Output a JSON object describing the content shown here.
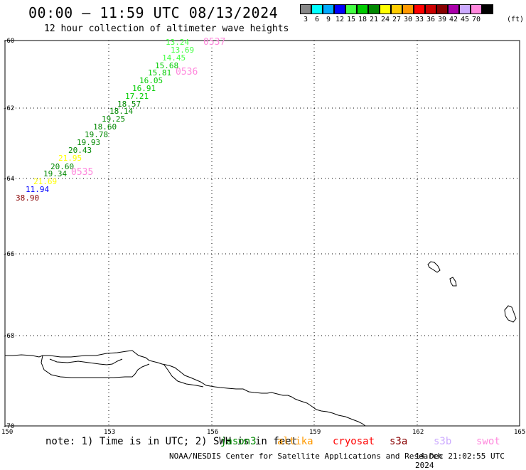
{
  "header": {
    "title": "00:00 – 11:59 UTC 08/13/2024",
    "subtitle": "12 hour collection of altimeter wave heights"
  },
  "legend": {
    "colors": [
      "#888888",
      "#00ffff",
      "#00aaff",
      "#0000ff",
      "#44ff44",
      "#00cc00",
      "#008800",
      "#ffff00",
      "#ffcc00",
      "#ff9900",
      "#ff0000",
      "#cc0000",
      "#880000",
      "#aa00aa",
      "#ccaaff",
      "#ff88dd",
      "#000000"
    ],
    "labels": [
      "3",
      "6",
      "9",
      "12",
      "15",
      "18",
      "21",
      "24",
      "27",
      "30",
      "33",
      "36",
      "39",
      "42",
      "45",
      "70"
    ],
    "unit": "(ft)"
  },
  "axes": {
    "lat_labels": [
      "-60",
      "-62",
      "-64",
      "-66",
      "-68",
      "-70"
    ],
    "lon_labels": [
      "150",
      "153",
      "156",
      "159",
      "162",
      "165"
    ]
  },
  "observations": [
    {
      "value": "13.24",
      "color": "#44ff44"
    },
    {
      "value": "13.69",
      "color": "#44ff44"
    },
    {
      "value": "14.45",
      "color": "#44ff44"
    },
    {
      "value": "15.68",
      "color": "#00cc00"
    },
    {
      "value": "15.81",
      "color": "#00cc00"
    },
    {
      "value": "16.05",
      "color": "#00cc00"
    },
    {
      "value": "16.91",
      "color": "#00cc00"
    },
    {
      "value": "17.21",
      "color": "#00cc00"
    },
    {
      "value": "18.57",
      "color": "#008800"
    },
    {
      "value": "18.14",
      "color": "#008800"
    },
    {
      "value": "19.25",
      "color": "#008800"
    },
    {
      "value": "18.60",
      "color": "#008800"
    },
    {
      "value": "19.78",
      "color": "#008800"
    },
    {
      "value": "19.93",
      "color": "#008800"
    },
    {
      "value": "20.43",
      "color": "#008800"
    },
    {
      "value": "21.95",
      "color": "#ffff00"
    },
    {
      "value": "20.60",
      "color": "#008800"
    },
    {
      "value": "19.34",
      "color": "#008800"
    },
    {
      "value": "21.69",
      "color": "#ffff00"
    },
    {
      "value": "11.94",
      "color": "#0000ff"
    },
    {
      "value": "38.90",
      "color": "#880000"
    }
  ],
  "passes": [
    "0537",
    "0536",
    "0535"
  ],
  "footer": {
    "note": "note: 1) Time is in UTC; 2) SWH is in feet",
    "satellites": [
      {
        "name": "jason3",
        "color": "#008800"
      },
      {
        "name": "altika",
        "color": "#ff9900"
      },
      {
        "name": "cryosat",
        "color": "#ff0000"
      },
      {
        "name": "s3a",
        "color": "#880000"
      },
      {
        "name": "s3b",
        "color": "#ccaaff"
      },
      {
        "name": "swot",
        "color": "#ff88dd"
      }
    ],
    "credit": "NOAA/NESDIS Center for Satellite Applications and Research",
    "timestamp": "14 Dec 21:02:55 UTC 2024"
  }
}
